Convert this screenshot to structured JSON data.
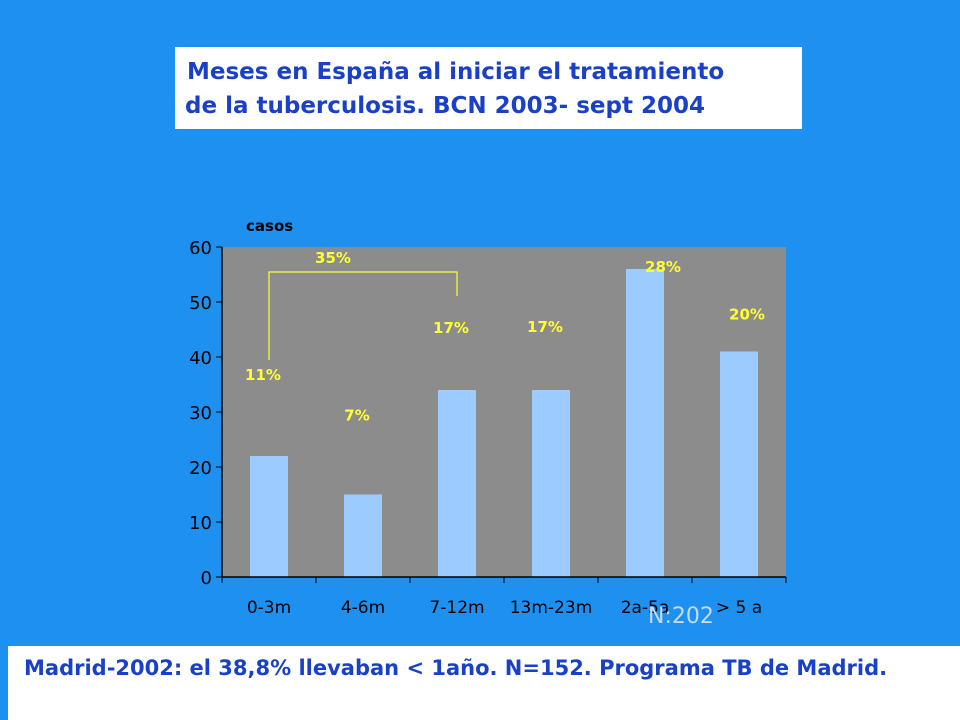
{
  "title": {
    "line1": "Meses en España al iniciar el tratamiento",
    "line2": "de la tuberculosis. BCN 2003- sept 2004"
  },
  "annotation": {
    "bracket_label": "35%",
    "sample_size": "N:202"
  },
  "footer": {
    "text": "Madrid-2002: el 38,8% llevaban < 1año. N=152. Programa TB de Madrid."
  },
  "colors": {
    "background": "#1e90f0",
    "plot_area": "#8c8c8c",
    "bar": "#9cccff",
    "percent_label": "#ffff33",
    "title_text": "#1a40c8"
  },
  "chart_data": {
    "type": "bar",
    "ylabel": "casos",
    "xlabel": "",
    "categories": [
      "0-3m",
      "4-6m",
      "7-12m",
      "13m-23m",
      "2a-5a",
      "> 5 a"
    ],
    "values": [
      22,
      15,
      34,
      34,
      56,
      41
    ],
    "data_labels": [
      "11%",
      "7%",
      "17%",
      "17%",
      "28%",
      "20%"
    ],
    "yticks": [
      0,
      10,
      20,
      30,
      40,
      50,
      60
    ],
    "ylim": [
      0,
      60
    ],
    "grid": false,
    "legend": "none"
  }
}
